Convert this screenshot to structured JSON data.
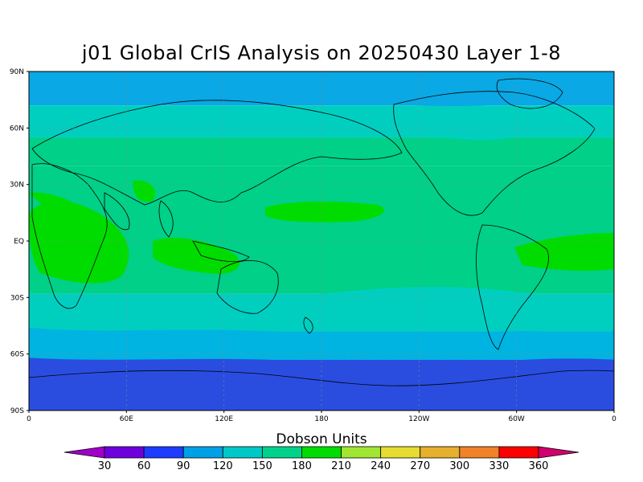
{
  "title": "j01 Global CrIS Analysis on 20250430 Layer 1-8",
  "map": {
    "lat_labels": [
      "90N",
      "60N",
      "30N",
      "EQ",
      "30S",
      "60S",
      "90S"
    ],
    "lon_labels": [
      "0",
      "60E",
      "120E",
      "180",
      "120W",
      "60W",
      "0"
    ],
    "grid_lines": "dotted"
  },
  "colorbar": {
    "title": "Dobson Units",
    "ticks": [
      "30",
      "60",
      "90",
      "120",
      "150",
      "180",
      "210",
      "240",
      "270",
      "300",
      "330",
      "360"
    ],
    "colors": [
      "#a000c8",
      "#6e00dc",
      "#1e3cff",
      "#00a0e6",
      "#00c8c8",
      "#00d28c",
      "#00dc00",
      "#a0e632",
      "#e6dc32",
      "#e6af2d",
      "#f08228",
      "#fa0000",
      "#d2006e"
    ]
  },
  "ozone_field": {
    "band_colors": {
      "polar_south": "#2a4de0",
      "southern_ocean": "#00b4e1",
      "mid_latitude": "#00cfc0",
      "subtropical": "#00d088",
      "tropical_max": "#00dc00",
      "north_high": "#0aa8e4"
    }
  }
}
